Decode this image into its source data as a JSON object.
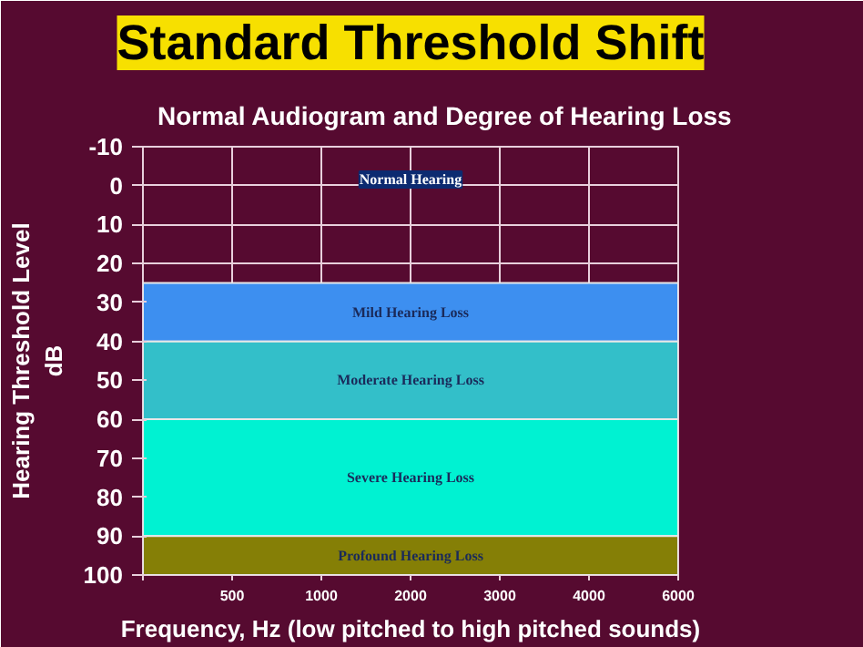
{
  "chart_data": {
    "type": "line",
    "title": "Standard Threshold Shift",
    "subtitle": "Normal Audiogram and Degree of Hearing Loss",
    "xlabel": "Frequency, Hz (low pitched to high pitched sounds)",
    "ylabel": "Hearing Threshold Level\ndB",
    "categories": [
      null,
      "500",
      "1000",
      "2000",
      "3000",
      "4000",
      "6000"
    ],
    "annotations": [
      "Normal Hearing"
    ],
    "ylim": [
      100,
      -10
    ],
    "yticks": [
      -10,
      0,
      10,
      20,
      30,
      40,
      50,
      60,
      70,
      80,
      90,
      100
    ],
    "grid": true,
    "bands": [
      {
        "axis": "y",
        "from": 25,
        "to": 40,
        "label": "Mild Hearing Loss",
        "color": "#3d8ff0"
      },
      {
        "axis": "y",
        "from": 40,
        "to": 60,
        "label": "Moderate Hearing Loss",
        "color": "#33bfc9"
      },
      {
        "axis": "y",
        "from": 60,
        "to": 90,
        "label": "Severe Hearing Loss",
        "color": "#00f2d2"
      },
      {
        "axis": "y",
        "from": 90,
        "to": 100,
        "label": "Profound Hearing Loss",
        "color": "#857f06"
      }
    ]
  }
}
